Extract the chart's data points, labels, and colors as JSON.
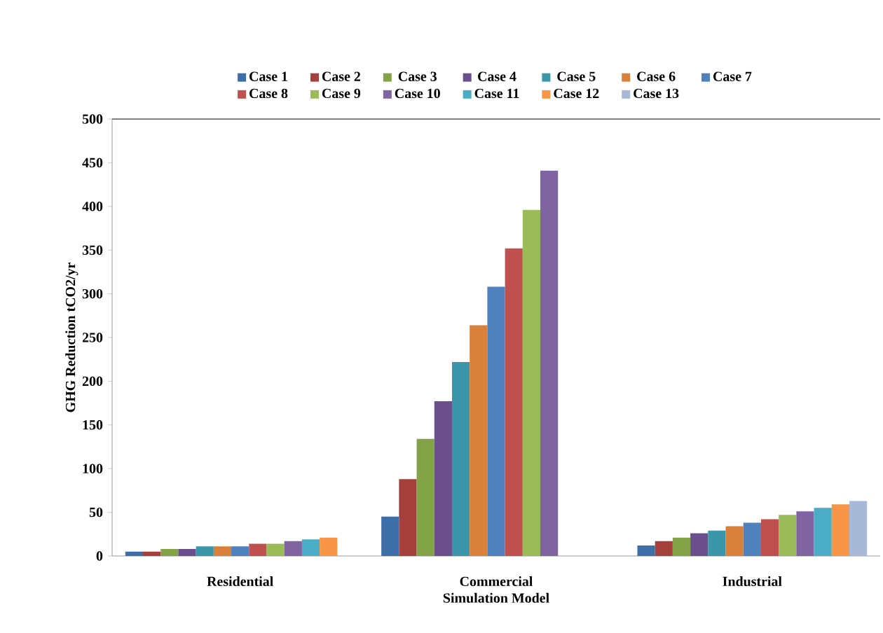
{
  "chart_data": {
    "type": "bar",
    "xlabel": "Simulation Model",
    "ylabel": "GHG Reduction tCO2/yr",
    "categories": [
      "Residential",
      "Commercial",
      "Industrial"
    ],
    "ylim": [
      0,
      500
    ],
    "yticks": [
      0,
      50,
      100,
      150,
      200,
      250,
      300,
      350,
      400,
      450,
      500
    ],
    "legend": "top",
    "series": [
      {
        "name": "Case 1",
        "color": "#3d6ea8",
        "values": [
          5,
          45,
          12
        ]
      },
      {
        "name": "Case 2",
        "color": "#a5403d",
        "values": [
          5,
          88,
          17
        ]
      },
      {
        "name": "Case 3",
        "color": "#83a347",
        "values": [
          8,
          134,
          21
        ]
      },
      {
        "name": "Case 4",
        "color": "#6a4f8c",
        "values": [
          8,
          177,
          26
        ]
      },
      {
        "name": "Case 5",
        "color": "#3a96a8",
        "values": [
          11,
          222,
          29
        ]
      },
      {
        "name": "Case 6",
        "color": "#d9803a",
        "values": [
          11,
          264,
          34
        ]
      },
      {
        "name": "Case 7",
        "color": "#4f81bd",
        "values": [
          11,
          308,
          38
        ]
      },
      {
        "name": "Case 8",
        "color": "#c0504d",
        "values": [
          14,
          352,
          42
        ]
      },
      {
        "name": "Case 9",
        "color": "#9bbb59",
        "values": [
          14,
          396,
          47
        ]
      },
      {
        "name": "Case 10",
        "color": "#8064a2",
        "values": [
          17,
          441,
          51
        ]
      },
      {
        "name": "Case 11",
        "color": "#4bacc6",
        "values": [
          19,
          null,
          55
        ]
      },
      {
        "name": "Case 12",
        "color": "#f79646",
        "values": [
          21,
          null,
          59
        ]
      },
      {
        "name": "Case 13",
        "color": "#a8b9d8",
        "values": [
          null,
          null,
          63
        ]
      }
    ]
  }
}
